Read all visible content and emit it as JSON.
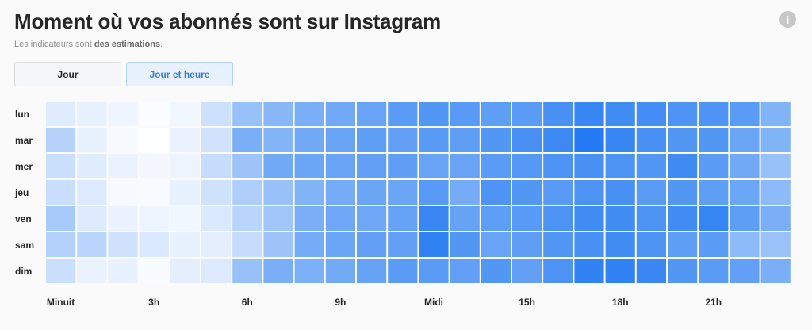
{
  "header": {
    "title": "Moment où vos abonnés sont sur Instagram",
    "subtitle_prefix": "Les indicateurs sont ",
    "subtitle_bold": "des estimations",
    "subtitle_suffix": ".",
    "info_icon": "info-icon",
    "info_glyph": "i"
  },
  "tabs": [
    {
      "label": "Jour",
      "active": false
    },
    {
      "label": "Jour et heure",
      "active": true
    }
  ],
  "colors": {
    "low": "#ffffff",
    "high": "#1a74f1"
  },
  "chart_data": {
    "type": "heatmap",
    "rows": [
      "lun",
      "mar",
      "mer",
      "jeu",
      "ven",
      "sam",
      "dim"
    ],
    "x_tick_labels": [
      "Minuit",
      "3h",
      "6h",
      "9h",
      "Midi",
      "15h",
      "18h",
      "21h"
    ],
    "x_tick_hours": [
      0,
      3,
      6,
      9,
      12,
      15,
      18,
      21
    ],
    "hours": [
      0,
      1,
      2,
      3,
      4,
      5,
      6,
      7,
      8,
      9,
      10,
      11,
      12,
      13,
      14,
      15,
      16,
      17,
      18,
      19,
      20,
      21,
      22,
      23
    ],
    "values": [
      [
        0.14,
        0.1,
        0.07,
        0.02,
        0.06,
        0.22,
        0.45,
        0.52,
        0.58,
        0.62,
        0.66,
        0.72,
        0.75,
        0.73,
        0.7,
        0.72,
        0.8,
        0.87,
        0.83,
        0.82,
        0.77,
        0.77,
        0.72,
        0.55
      ],
      [
        0.32,
        0.1,
        0.04,
        0.01,
        0.09,
        0.2,
        0.58,
        0.54,
        0.62,
        0.66,
        0.7,
        0.68,
        0.73,
        0.7,
        0.75,
        0.8,
        0.85,
        0.96,
        0.87,
        0.8,
        0.75,
        0.75,
        0.65,
        0.55
      ],
      [
        0.23,
        0.14,
        0.09,
        0.05,
        0.08,
        0.25,
        0.43,
        0.62,
        0.65,
        0.66,
        0.68,
        0.7,
        0.66,
        0.66,
        0.72,
        0.74,
        0.78,
        0.8,
        0.78,
        0.75,
        0.84,
        0.72,
        0.62,
        0.45
      ],
      [
        0.24,
        0.15,
        0.04,
        0.03,
        0.1,
        0.21,
        0.35,
        0.45,
        0.55,
        0.6,
        0.65,
        0.65,
        0.73,
        0.6,
        0.77,
        0.75,
        0.73,
        0.78,
        0.8,
        0.72,
        0.75,
        0.7,
        0.64,
        0.5
      ],
      [
        0.38,
        0.15,
        0.09,
        0.07,
        0.06,
        0.16,
        0.3,
        0.42,
        0.58,
        0.63,
        0.63,
        0.67,
        0.86,
        0.67,
        0.7,
        0.73,
        0.78,
        0.83,
        0.83,
        0.78,
        0.83,
        0.88,
        0.7,
        0.58
      ],
      [
        0.33,
        0.3,
        0.21,
        0.16,
        0.1,
        0.12,
        0.25,
        0.43,
        0.6,
        0.65,
        0.68,
        0.68,
        0.9,
        0.75,
        0.66,
        0.7,
        0.75,
        0.8,
        0.83,
        0.78,
        0.7,
        0.72,
        0.5,
        0.44
      ],
      [
        0.23,
        0.09,
        0.1,
        0.03,
        0.12,
        0.15,
        0.45,
        0.58,
        0.57,
        0.61,
        0.67,
        0.72,
        0.72,
        0.68,
        0.75,
        0.68,
        0.78,
        0.9,
        0.9,
        0.86,
        0.75,
        0.72,
        0.68,
        0.58
      ]
    ]
  }
}
